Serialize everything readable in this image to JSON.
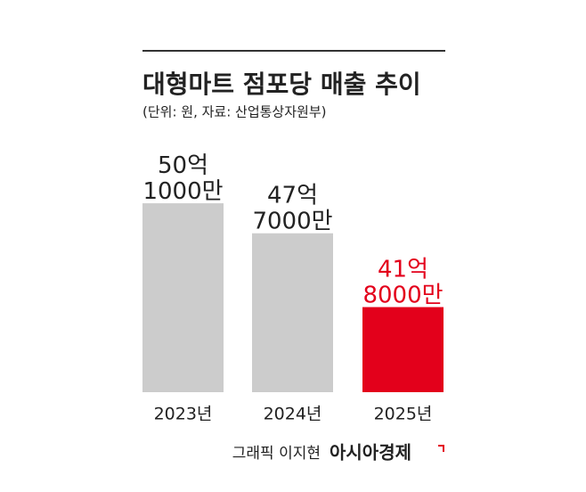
{
  "chart_data": {
    "type": "bar",
    "title": "대형마트 점포당 매출 추이",
    "subtitle": "(단위: 원, 자료: 산업통상자원부)",
    "categories": [
      "2023년",
      "2024년",
      "2025년"
    ],
    "values": [
      5010000000,
      4770000000,
      4180000000
    ],
    "value_labels": [
      "50억\n1000만",
      "47억\n7000만",
      "41억\n8000만"
    ],
    "colors": [
      "#cccccc",
      "#cccccc",
      "#e3001b"
    ],
    "label_colors": [
      "#222222",
      "#222222",
      "#e3001b"
    ],
    "ylim": [
      3500000000,
      5100000000
    ],
    "grid": false
  },
  "footer": {
    "credit": "그래픽 이지현",
    "brand": "아시아경제"
  }
}
